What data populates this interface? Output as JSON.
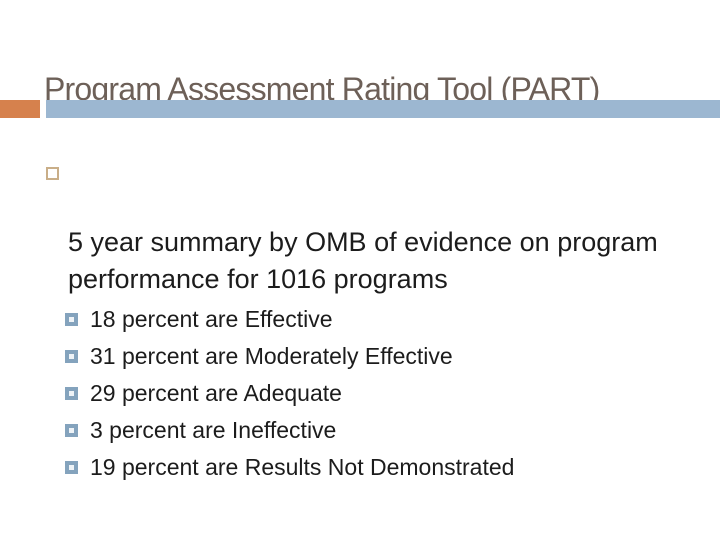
{
  "slide": {
    "title": "Program Assessment Rating Tool (PART)",
    "bullets": {
      "main_text": "5 year summary by OMB of evidence on program\nperformance for 1016 programs",
      "sub_items": [
        "18 percent are Effective",
        "31 percent are Moderately Effective",
        "29 percent are Adequate",
        "3 percent are Ineffective",
        "19 percent are Results Not Demonstrated"
      ]
    },
    "colors": {
      "title_text": "#6d6058",
      "body_text": "#1c1c1c",
      "accent_orange": "#d6814d",
      "accent_blue": "#9cb7d1",
      "l1_bullet_outline": "#c9ae88",
      "l2_bullet_border": "#84a3bd",
      "l2_bullet_fill": "#eef3f7"
    }
  }
}
